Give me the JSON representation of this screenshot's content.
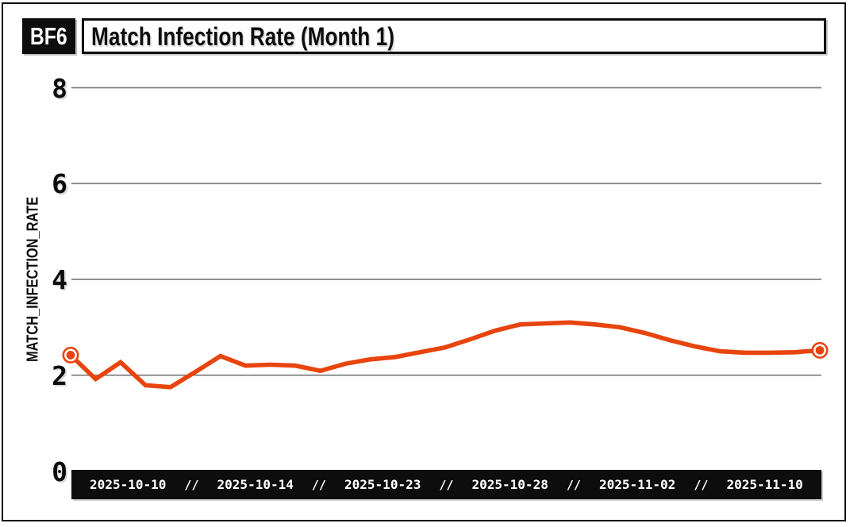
{
  "header": {
    "badge_label": "BF6",
    "title": "Match Infection Rate (Month 1)"
  },
  "colors": {
    "accent": "#E8440D",
    "grid": "#7F7F7F",
    "ink": "#0D0D0D",
    "bar_background": "#0D0D0D",
    "bar_text": "#FFFFFF",
    "background": "#FFFFFF"
  },
  "chart_data": {
    "type": "line",
    "title": "Match Infection Rate (Month 1)",
    "xlabel": "",
    "ylabel": "MATCH_INFECTION_RATE",
    "ylim": [
      0,
      8
    ],
    "yticks": [
      8,
      6,
      4,
      2,
      0
    ],
    "grid": "horizontal gridlines at y = 2, 4, 6, 8",
    "legend": "none",
    "endpoint_markers": "ring marker on first and last data point",
    "x_tick_labels": [
      "2025-10-10",
      "2025-10-14",
      "2025-10-23",
      "2025-10-28",
      "2025-11-02",
      "2025-11-10"
    ],
    "x_tick_separator": "//",
    "series": [
      {
        "name": "MATCH_INFECTION_RATE",
        "values": [
          2.42,
          1.92,
          2.27,
          1.79,
          1.75,
          2.07,
          2.4,
          2.2,
          2.22,
          2.2,
          2.09,
          2.24,
          2.33,
          2.38,
          2.48,
          2.58,
          2.75,
          2.93,
          3.06,
          3.08,
          3.1,
          3.06,
          3.0,
          2.88,
          2.73,
          2.6,
          2.5,
          2.47,
          2.47,
          2.48,
          2.52
        ]
      }
    ]
  }
}
